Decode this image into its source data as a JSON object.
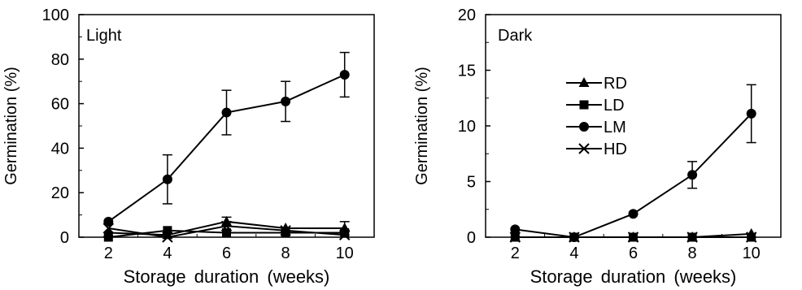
{
  "chart_data": [
    {
      "type": "line",
      "panel_label": "Light",
      "xlabel": "Storage duration (weeks)",
      "ylabel": "Germination (%)",
      "x": [
        2,
        4,
        6,
        8,
        10
      ],
      "xticks": [
        "2",
        "4",
        "6",
        "8",
        "10"
      ],
      "ylim": [
        0,
        100
      ],
      "yticks": [
        "0",
        "20",
        "40",
        "60",
        "80",
        "100"
      ],
      "ytick_values": [
        0,
        20,
        40,
        60,
        80,
        100
      ],
      "grid": false,
      "legend": null,
      "series": [
        {
          "name": "RD",
          "marker": "triangle",
          "values": [
            2,
            1,
            7,
            4,
            4
          ],
          "errors": [
            0,
            0,
            2,
            0,
            3
          ]
        },
        {
          "name": "LD",
          "marker": "square",
          "values": [
            0,
            3,
            2,
            2,
            2
          ],
          "errors": [
            0,
            0,
            0,
            0,
            0
          ]
        },
        {
          "name": "LM",
          "marker": "circle",
          "values": [
            7,
            26,
            56,
            61,
            73
          ],
          "errors": [
            0,
            11,
            10,
            9,
            10
          ]
        },
        {
          "name": "HD",
          "marker": "x",
          "values": [
            4,
            0,
            5,
            3,
            1
          ],
          "errors": [
            0,
            0,
            0,
            0,
            0
          ]
        }
      ]
    },
    {
      "type": "line",
      "panel_label": "Dark",
      "xlabel": "Storage duration (weeks)",
      "ylabel": "Germination (%)",
      "x": [
        2,
        4,
        6,
        8,
        10
      ],
      "xticks": [
        "2",
        "4",
        "6",
        "8",
        "10"
      ],
      "ylim": [
        0,
        20
      ],
      "yticks": [
        "0",
        "5",
        "10",
        "15",
        "20"
      ],
      "ytick_values": [
        0,
        5,
        10,
        15,
        20
      ],
      "grid": false,
      "legend": "center-right",
      "series": [
        {
          "name": "RD",
          "marker": "triangle",
          "values": [
            0,
            0,
            0,
            0,
            0.3
          ],
          "errors": [
            0,
            0,
            0,
            0,
            0
          ]
        },
        {
          "name": "LD",
          "marker": "square",
          "values": [
            0,
            0,
            0,
            0,
            0
          ],
          "errors": [
            0,
            0,
            0,
            0,
            0
          ]
        },
        {
          "name": "LM",
          "marker": "circle",
          "values": [
            0.7,
            0,
            2.1,
            5.6,
            11.1
          ],
          "errors": [
            0,
            0,
            0,
            1.2,
            2.6
          ]
        },
        {
          "name": "HD",
          "marker": "x",
          "values": [
            0,
            0,
            0,
            0,
            0
          ],
          "errors": [
            0,
            0,
            0,
            0,
            0
          ]
        }
      ]
    }
  ]
}
